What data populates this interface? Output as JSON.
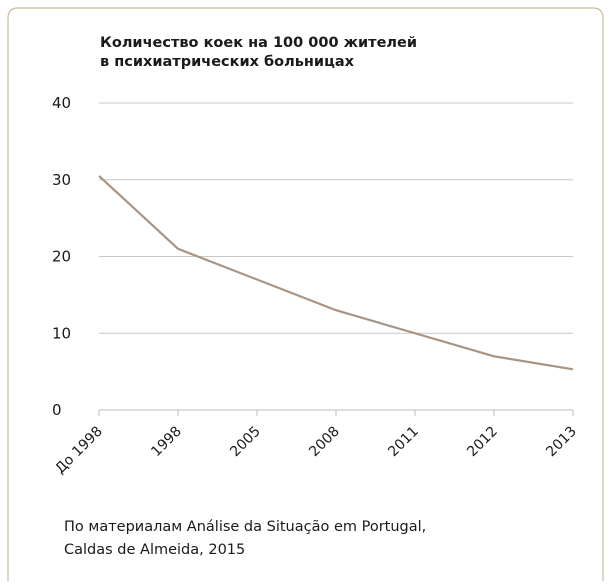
{
  "chart_data": {
    "type": "line",
    "title": [
      "Количество коек на 100 000 жителей",
      "в психиатрических больницах"
    ],
    "categories": [
      "До 1998",
      "1998",
      "2005",
      "2008",
      "2011",
      "2012",
      "2013"
    ],
    "series": [
      {
        "color": "#a89484",
        "values": [
          30.5,
          21,
          17,
          13,
          10,
          7,
          5.3
        ]
      }
    ],
    "ylim": [
      0,
      40
    ],
    "yticks": [
      0,
      10,
      20,
      30,
      40
    ],
    "grid": true,
    "source": [
      "По материалам Análise da Situação em Portugal,",
      "Caldas de Almeida, 2015"
    ]
  }
}
